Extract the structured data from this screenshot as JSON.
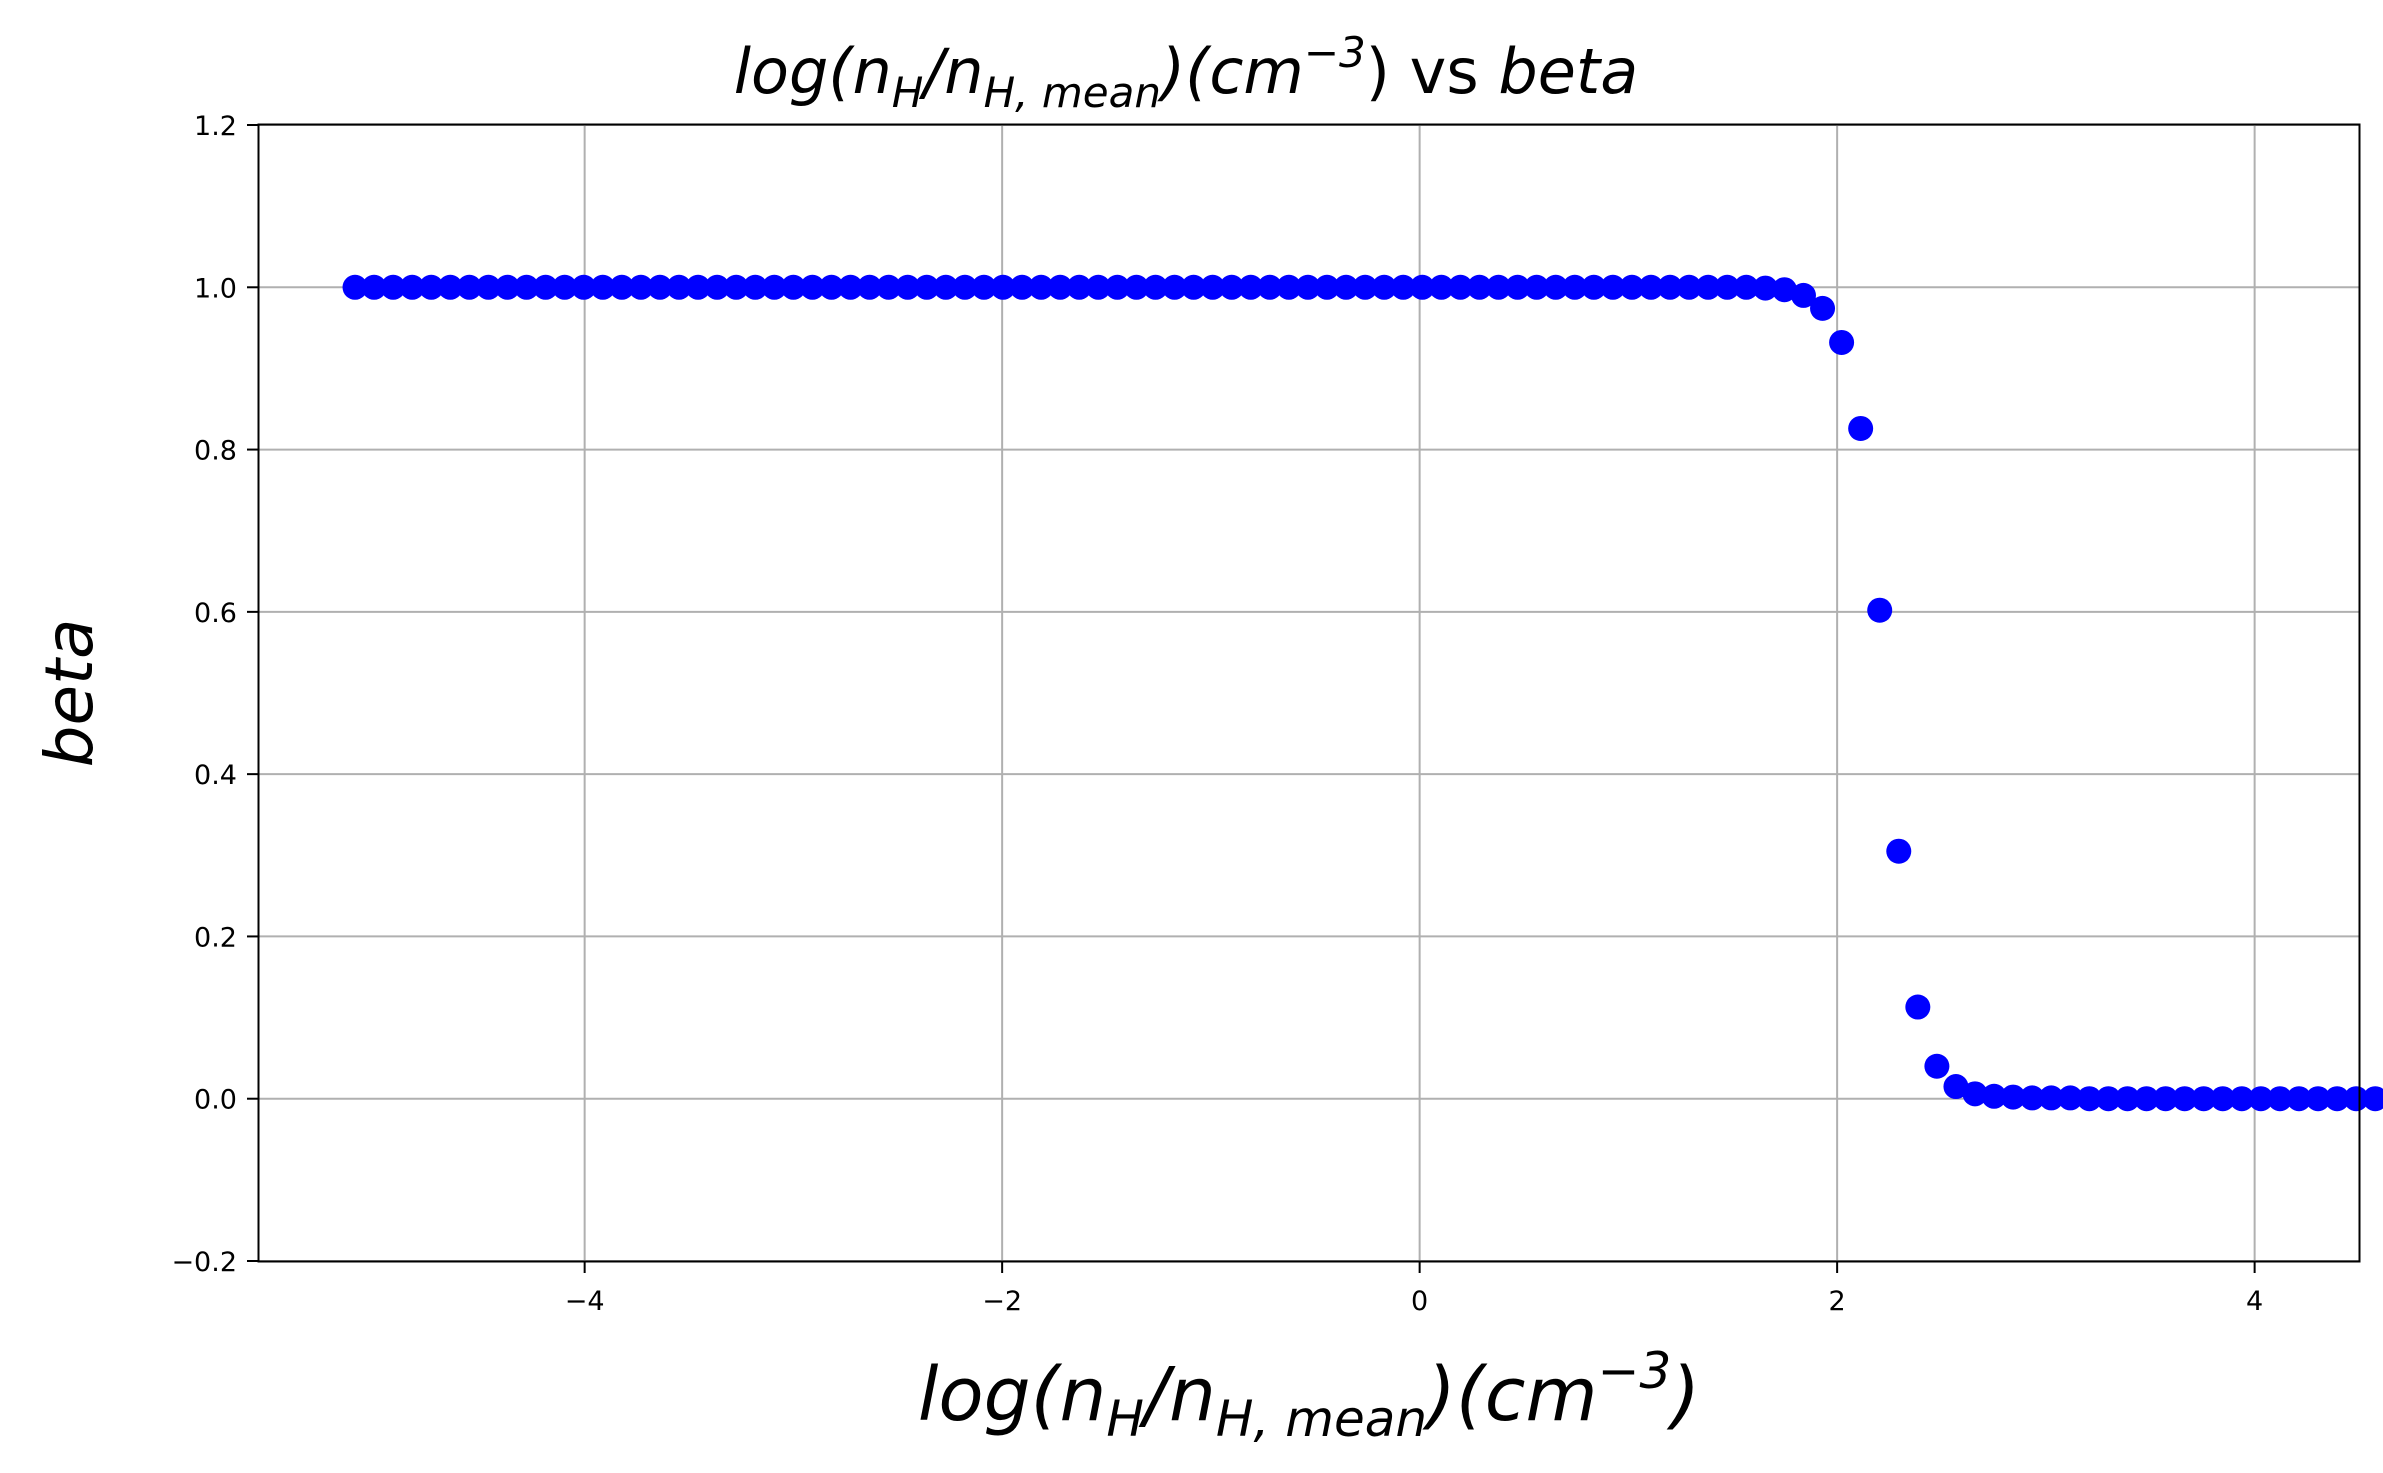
{
  "chart_data": {
    "type": "scatter",
    "title": {
      "prefix": "log(n",
      "sub_h": "H",
      "slash": "/n",
      "sub_hmean": "H, mean",
      "mid": ")(cm",
      "sup": "−3",
      "close": ")",
      "vs": " vs ",
      "beta": "beta"
    },
    "xlabel": {
      "prefix": "log(n",
      "sub_h": "H",
      "slash": "/n",
      "sub_hmean": "H, mean",
      "mid": ")(cm",
      "sup": "−3",
      "close": ")"
    },
    "ylabel": "beta",
    "xlim": [
      -5.56,
      4.5
    ],
    "ylim": [
      -0.2,
      1.2
    ],
    "xticks": [
      -4,
      -2,
      0,
      2,
      4
    ],
    "xtick_labels": [
      "−4",
      "−2",
      "0",
      "2",
      "4"
    ],
    "yticks": [
      -0.2,
      0.0,
      0.2,
      0.4,
      0.6,
      0.8,
      1.0,
      1.2
    ],
    "ytick_labels": [
      "−0.2",
      "0.0",
      "0.2",
      "0.4",
      "0.6",
      "0.8",
      "1.0",
      "1.2"
    ],
    "grid": true,
    "marker_color": "#0000ff",
    "x_start": -5.1,
    "x_step": 0.0913,
    "y": [
      1.0,
      1.0,
      1.0,
      1.0,
      1.0,
      1.0,
      1.0,
      1.0,
      1.0,
      1.0,
      1.0,
      1.0,
      1.0,
      1.0,
      1.0,
      1.0,
      1.0,
      1.0,
      1.0,
      1.0,
      1.0,
      1.0,
      1.0,
      1.0,
      1.0,
      1.0,
      1.0,
      1.0,
      1.0,
      1.0,
      1.0,
      1.0,
      1.0,
      1.0,
      1.0,
      1.0,
      1.0,
      1.0,
      1.0,
      1.0,
      1.0,
      1.0,
      1.0,
      1.0,
      1.0,
      1.0,
      1.0,
      1.0,
      1.0,
      1.0,
      1.0,
      1.0,
      1.0,
      1.0,
      1.0,
      1.0,
      1.0,
      1.0,
      1.0,
      1.0,
      1.0,
      1.0,
      1.0,
      1.0,
      1.0,
      1.0,
      1.0,
      1.0,
      1.0,
      1.0,
      1.0,
      1.0,
      1.0,
      1.0,
      0.999,
      0.997,
      0.99,
      0.974,
      0.932,
      0.826,
      0.602,
      0.305,
      0.113,
      0.04,
      0.015,
      0.006,
      0.003,
      0.002,
      0.001,
      0.001,
      0.001,
      0.0,
      0.0,
      0.0,
      0.0,
      0.0,
      0.0,
      0.0,
      0.0,
      0.0,
      0.0,
      0.0,
      0.0,
      0.0,
      0.0,
      0.0,
      0.0,
      0.0,
      0.0,
      0.0
    ]
  }
}
